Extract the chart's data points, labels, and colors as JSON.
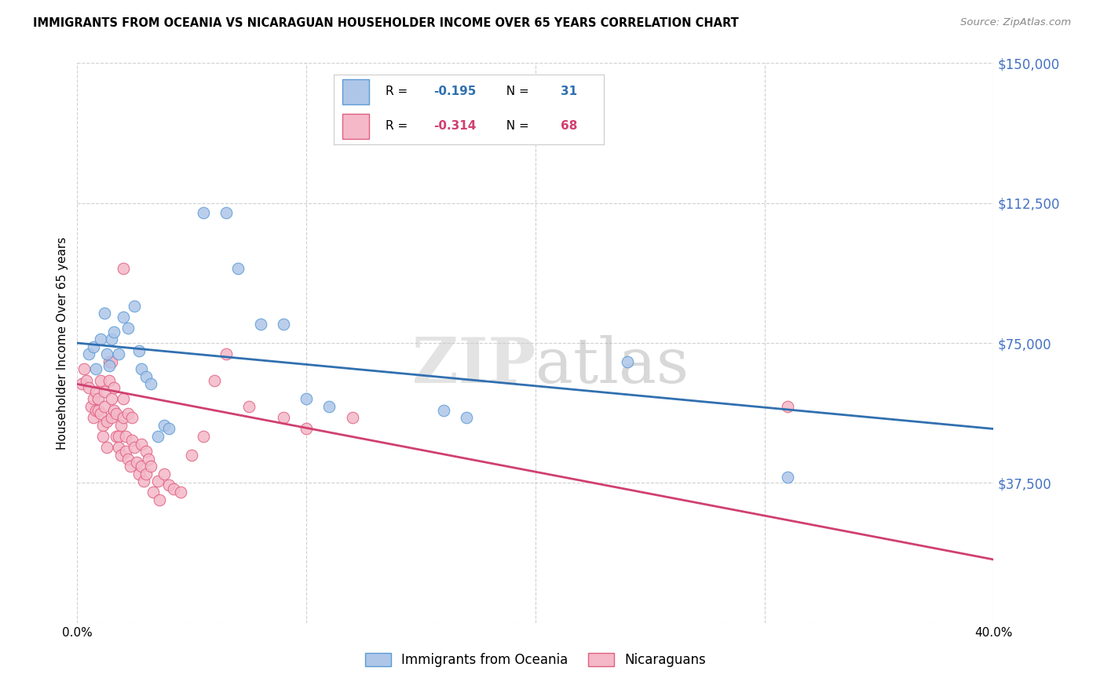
{
  "title": "IMMIGRANTS FROM OCEANIA VS NICARAGUAN HOUSEHOLDER INCOME OVER 65 YEARS CORRELATION CHART",
  "source": "Source: ZipAtlas.com",
  "ylabel": "Householder Income Over 65 years",
  "xmin": 0.0,
  "xmax": 0.4,
  "ymin": 0,
  "ymax": 150000,
  "yticks": [
    0,
    37500,
    75000,
    112500,
    150000
  ],
  "ytick_labels": [
    "",
    "$37,500",
    "$75,000",
    "$112,500",
    "$150,000"
  ],
  "xticks": [
    0.0,
    0.1,
    0.2,
    0.3,
    0.4
  ],
  "xtick_labels": [
    "0.0%",
    "",
    "",
    "",
    "40.0%"
  ],
  "legend_labels": [
    "Immigrants from Oceania",
    "Nicaraguans"
  ],
  "blue_fill": "#aec6e8",
  "blue_edge": "#5b9bd5",
  "pink_fill": "#f4b8c8",
  "pink_edge": "#e06080",
  "blue_line": "#3070b0",
  "pink_line": "#d04070",
  "R_blue": -0.195,
  "N_blue": 31,
  "R_pink": -0.314,
  "N_pink": 68,
  "blue_line_y0": 75000,
  "blue_line_y1": 52000,
  "pink_line_y0": 64000,
  "pink_line_y1": 17000,
  "watermark_zip": "ZIP",
  "watermark_atlas": "atlas",
  "blue_scatter_x": [
    0.005,
    0.007,
    0.008,
    0.01,
    0.012,
    0.013,
    0.014,
    0.015,
    0.016,
    0.018,
    0.02,
    0.022,
    0.025,
    0.027,
    0.028,
    0.03,
    0.032,
    0.035,
    0.038,
    0.04,
    0.055,
    0.065,
    0.07,
    0.08,
    0.09,
    0.1,
    0.11,
    0.16,
    0.17,
    0.24,
    0.31
  ],
  "blue_scatter_y": [
    72000,
    74000,
    68000,
    76000,
    83000,
    72000,
    69000,
    76000,
    78000,
    72000,
    82000,
    79000,
    85000,
    73000,
    68000,
    66000,
    64000,
    50000,
    53000,
    52000,
    110000,
    110000,
    95000,
    80000,
    80000,
    60000,
    58000,
    57000,
    55000,
    70000,
    39000
  ],
  "pink_scatter_x": [
    0.002,
    0.003,
    0.004,
    0.005,
    0.006,
    0.007,
    0.007,
    0.008,
    0.008,
    0.009,
    0.009,
    0.01,
    0.01,
    0.011,
    0.011,
    0.012,
    0.012,
    0.013,
    0.013,
    0.014,
    0.014,
    0.015,
    0.015,
    0.015,
    0.016,
    0.016,
    0.017,
    0.017,
    0.018,
    0.018,
    0.019,
    0.019,
    0.02,
    0.02,
    0.021,
    0.021,
    0.022,
    0.022,
    0.023,
    0.024,
    0.024,
    0.025,
    0.026,
    0.027,
    0.028,
    0.028,
    0.029,
    0.03,
    0.03,
    0.031,
    0.032,
    0.033,
    0.035,
    0.036,
    0.038,
    0.04,
    0.042,
    0.045,
    0.05,
    0.055,
    0.06,
    0.065,
    0.075,
    0.09,
    0.1,
    0.12,
    0.02,
    0.31
  ],
  "pink_scatter_y": [
    64000,
    68000,
    65000,
    63000,
    58000,
    60000,
    55000,
    62000,
    57000,
    60000,
    57000,
    65000,
    56000,
    53000,
    50000,
    62000,
    58000,
    54000,
    47000,
    70000,
    65000,
    70000,
    60000,
    55000,
    63000,
    57000,
    56000,
    50000,
    50000,
    47000,
    53000,
    45000,
    60000,
    55000,
    50000,
    46000,
    56000,
    44000,
    42000,
    55000,
    49000,
    47000,
    43000,
    40000,
    48000,
    42000,
    38000,
    46000,
    40000,
    44000,
    42000,
    35000,
    38000,
    33000,
    40000,
    37000,
    36000,
    35000,
    45000,
    50000,
    65000,
    72000,
    58000,
    55000,
    52000,
    55000,
    95000,
    58000
  ]
}
